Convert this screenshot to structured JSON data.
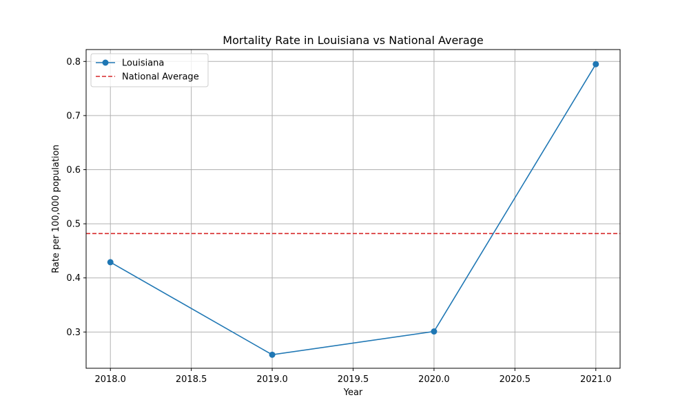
{
  "chart_data": {
    "type": "line",
    "title": "Mortality Rate in Louisiana vs National Average",
    "xlabel": "Year",
    "ylabel": "Rate per 100,000 population",
    "xlim": [
      2017.85,
      2021.15
    ],
    "ylim": [
      0.233,
      0.822
    ],
    "x_ticks": [
      2018.0,
      2018.5,
      2019.0,
      2019.5,
      2020.0,
      2020.5,
      2021.0
    ],
    "x_tick_labels": [
      "2018.0",
      "2018.5",
      "2019.0",
      "2019.5",
      "2020.0",
      "2020.5",
      "2021.0"
    ],
    "y_ticks": [
      0.3,
      0.4,
      0.5,
      0.6,
      0.7,
      0.8
    ],
    "y_tick_labels": [
      "0.3",
      "0.4",
      "0.5",
      "0.6",
      "0.7",
      "0.8"
    ],
    "grid": true,
    "legend_position": "top-left",
    "series": [
      {
        "name": "Louisiana",
        "x": [
          2018,
          2019,
          2020,
          2021
        ],
        "values": [
          0.429,
          0.258,
          0.301,
          0.795
        ],
        "color": "#1f77b4",
        "style": "solid",
        "marker": "circle"
      }
    ],
    "reference_lines": [
      {
        "name": "National Average",
        "y": 0.482,
        "color": "#d62728",
        "style": "dashed"
      }
    ]
  }
}
